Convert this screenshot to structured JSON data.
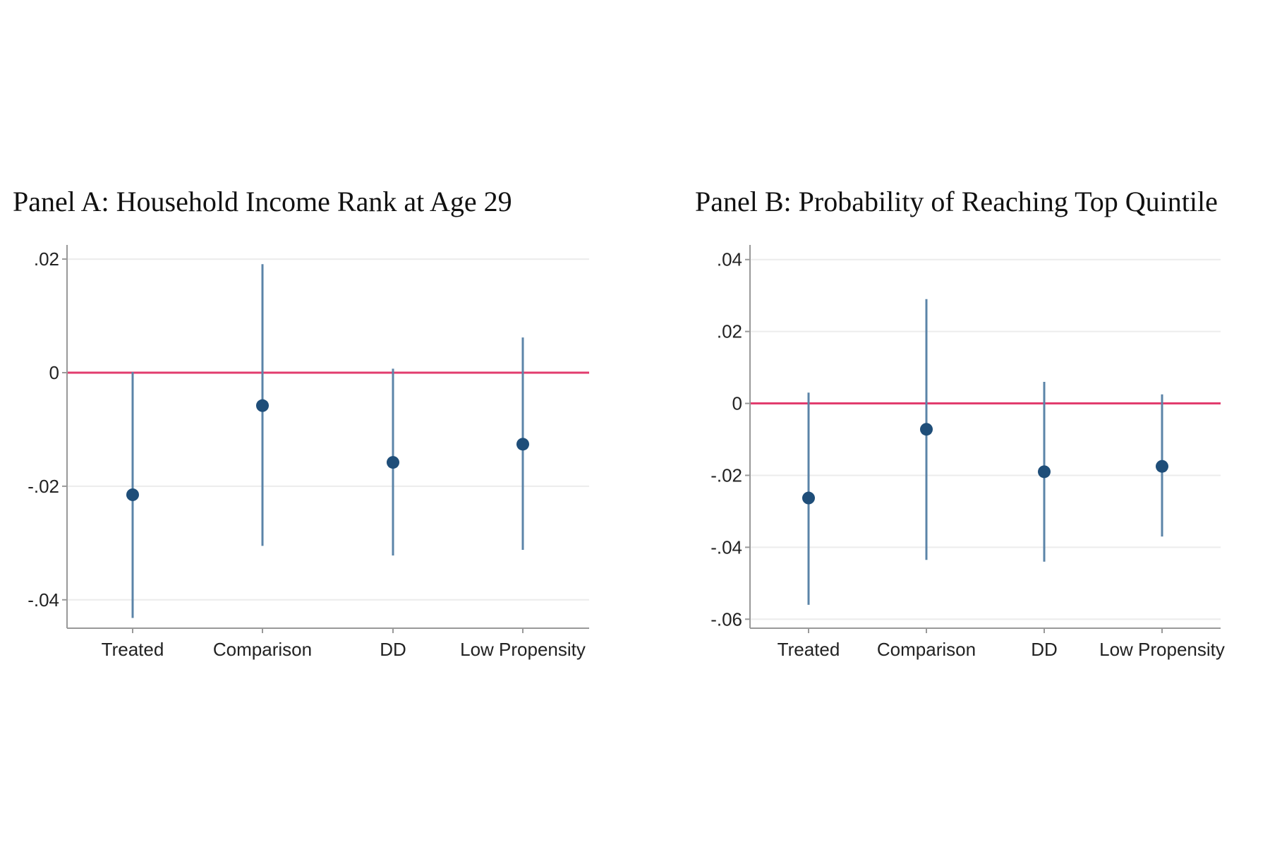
{
  "chart_data": [
    {
      "type": "scatter",
      "title": "Panel A: Household Income Rank at Age 29",
      "categories": [
        "Treated",
        "Comparison",
        "DD",
        "Low Propensity"
      ],
      "series": [
        {
          "values": [
            -0.0215,
            -0.0058,
            -0.0158,
            -0.0126
          ],
          "ci_lower": [
            -0.0432,
            -0.0305,
            -0.0322,
            -0.0312
          ],
          "ci_upper": [
            0.0001,
            0.0191,
            0.0007,
            0.0062
          ]
        }
      ],
      "reference_line": {
        "y": 0
      },
      "yticks": [
        0.02,
        0,
        -0.02,
        -0.04
      ],
      "ytick_labels": [
        ".02",
        "0",
        "-.02",
        "-.04"
      ],
      "ylim": [
        -0.045,
        0.0215
      ],
      "grid": true,
      "colors": {
        "marker": "#1f4e79",
        "ci": "#5b84a8",
        "reference": "#e23c6e",
        "grid": "#ececec",
        "axis": "#999999"
      }
    },
    {
      "type": "scatter",
      "title": "Panel B: Probability of Reaching Top Quintile",
      "categories": [
        "Treated",
        "Comparison",
        "DD",
        "Low Propensity"
      ],
      "series": [
        {
          "values": [
            -0.0263,
            -0.0072,
            -0.019,
            -0.0175
          ],
          "ci_lower": [
            -0.056,
            -0.0435,
            -0.044,
            -0.037
          ],
          "ci_upper": [
            0.003,
            0.029,
            0.006,
            0.0025
          ]
        }
      ],
      "reference_line": {
        "y": 0
      },
      "yticks": [
        0.04,
        0.02,
        0,
        -0.02,
        -0.04,
        -0.06
      ],
      "ytick_labels": [
        ".04",
        ".02",
        "0",
        "-.02",
        "-.04",
        "-.06"
      ],
      "ylim": [
        -0.0625,
        0.0425
      ],
      "grid": true,
      "colors": {
        "marker": "#1f4e79",
        "ci": "#5b84a8",
        "reference": "#e23c6e",
        "grid": "#ececec",
        "axis": "#999999"
      }
    }
  ]
}
